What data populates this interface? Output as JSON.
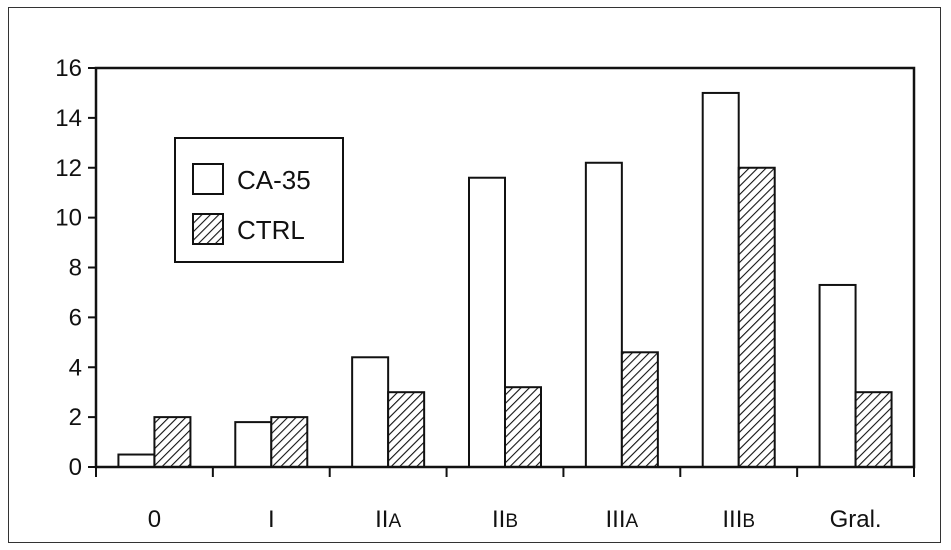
{
  "chart_data": {
    "type": "bar",
    "categories": [
      "0",
      "I",
      "IIA",
      "IIB",
      "IIIA",
      "IIIB",
      "Gral."
    ],
    "category_labels": [
      {
        "main": "0",
        "sub": ""
      },
      {
        "main": "I",
        "sub": ""
      },
      {
        "main": "II",
        "sub": "A"
      },
      {
        "main": "II",
        "sub": "B"
      },
      {
        "main": "III",
        "sub": "A"
      },
      {
        "main": "III",
        "sub": "B"
      },
      {
        "main": "Gral.",
        "sub": ""
      }
    ],
    "series": [
      {
        "name": "CA-35",
        "values": [
          0.5,
          1.8,
          4.4,
          11.6,
          12.2,
          15.0,
          7.3
        ],
        "fill": "white"
      },
      {
        "name": "CTRL",
        "values": [
          2.0,
          2.0,
          3.0,
          3.2,
          4.6,
          12.0,
          3.0
        ],
        "fill": "hatched"
      }
    ],
    "ylim": [
      0,
      16
    ],
    "yticks": [
      "0",
      "2",
      "4",
      "6",
      "8",
      "10",
      "12",
      "14",
      "16"
    ],
    "title": "",
    "xlabel": "",
    "ylabel": "",
    "grid": false,
    "legend_position": "upper-left",
    "colors": {
      "axis": "#111111",
      "bar_stroke": "#111111",
      "bar_white": "#ffffff",
      "hatch": "#111111"
    }
  }
}
